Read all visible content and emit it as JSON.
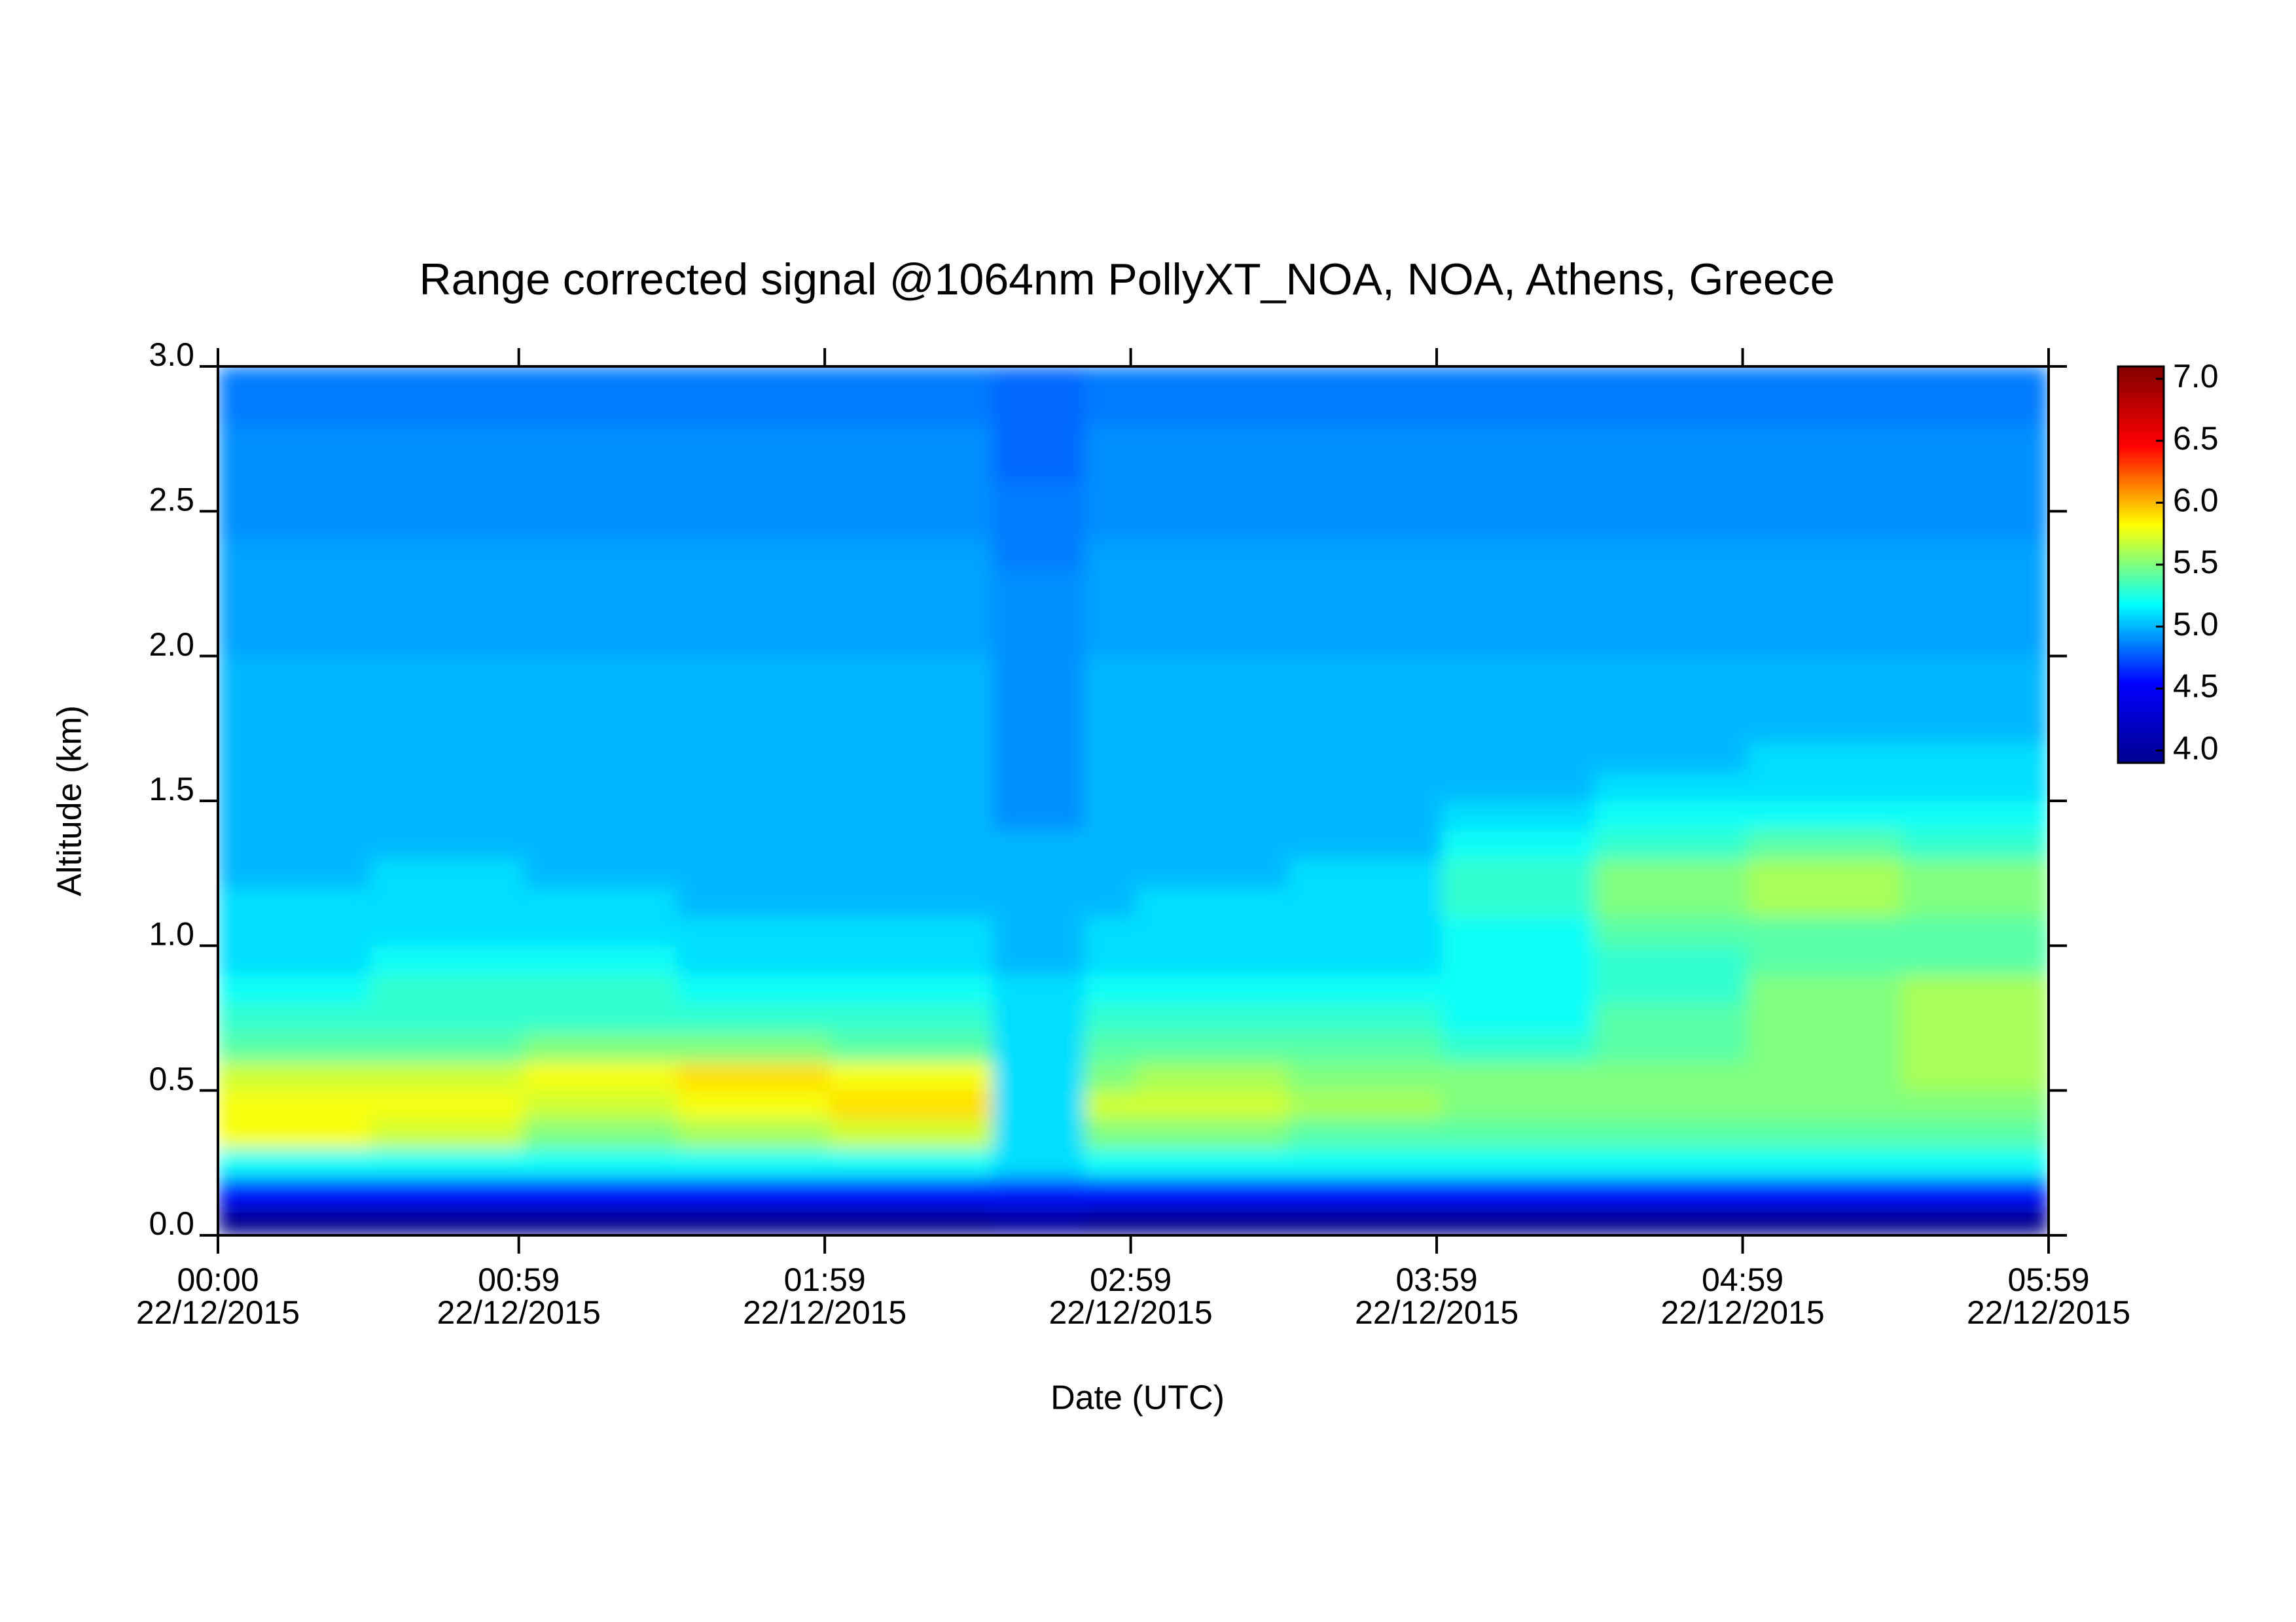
{
  "chart_data": {
    "type": "heatmap",
    "title": "Range corrected signal @1064nm  PollyXT_NOA, NOA, Athens, Greece",
    "x_label": "Date (UTC)",
    "y_label": "Altitude (km)",
    "xbins": [
      0,
      30,
      60,
      90,
      120,
      152,
      170,
      180,
      210,
      240,
      270,
      300,
      330,
      359
    ],
    "ybins": [
      0,
      0.1,
      0.2,
      0.3,
      0.4,
      0.5,
      0.6,
      0.7,
      0.8,
      0.9,
      1.0,
      1.1,
      1.2,
      1.3,
      1.4,
      1.5,
      1.6,
      1.7,
      1.8,
      1.9,
      2.0,
      2.1,
      2.2,
      2.3,
      2.4,
      2.5,
      2.6,
      2.7,
      2.8,
      2.9,
      3.0
    ],
    "z": [
      [
        3.9,
        3.9,
        3.9,
        3.9,
        3.9,
        4.0,
        3.9,
        3.9,
        3.9,
        3.9,
        3.9,
        3.9,
        3.9
      ],
      [
        4.6,
        4.6,
        4.6,
        4.6,
        4.6,
        4.6,
        4.6,
        4.6,
        4.6,
        4.6,
        4.6,
        4.6,
        4.6
      ],
      [
        5.2,
        5.2,
        5.2,
        5.2,
        5.2,
        5.1,
        5.2,
        5.2,
        5.2,
        5.2,
        5.2,
        5.2,
        5.2
      ],
      [
        5.8,
        5.7,
        5.5,
        5.6,
        5.7,
        5.1,
        5.5,
        5.5,
        5.4,
        5.4,
        5.4,
        5.4,
        5.4
      ],
      [
        5.8,
        5.8,
        5.7,
        5.8,
        5.9,
        5.1,
        5.7,
        5.7,
        5.6,
        5.5,
        5.5,
        5.5,
        5.5
      ],
      [
        5.7,
        5.7,
        5.8,
        5.9,
        5.8,
        5.1,
        5.5,
        5.6,
        5.5,
        5.5,
        5.5,
        5.5,
        5.6
      ],
      [
        5.4,
        5.4,
        5.5,
        5.5,
        5.4,
        5.1,
        5.4,
        5.4,
        5.4,
        5.3,
        5.4,
        5.5,
        5.6
      ],
      [
        5.3,
        5.3,
        5.3,
        5.3,
        5.3,
        5.1,
        5.3,
        5.3,
        5.3,
        5.2,
        5.4,
        5.5,
        5.6
      ],
      [
        5.2,
        5.3,
        5.3,
        5.2,
        5.2,
        5.1,
        5.2,
        5.2,
        5.2,
        5.2,
        5.3,
        5.5,
        5.6
      ],
      [
        5.1,
        5.2,
        5.2,
        5.1,
        5.1,
        5.0,
        5.1,
        5.1,
        5.1,
        5.2,
        5.3,
        5.4,
        5.4
      ],
      [
        5.1,
        5.1,
        5.1,
        5.1,
        5.1,
        5.0,
        5.1,
        5.1,
        5.1,
        5.2,
        5.4,
        5.4,
        5.4
      ],
      [
        5.1,
        5.1,
        5.1,
        5.0,
        5.0,
        5.0,
        5.0,
        5.1,
        5.1,
        5.3,
        5.5,
        5.6,
        5.5
      ],
      [
        5.0,
        5.1,
        5.0,
        5.0,
        5.0,
        5.0,
        5.0,
        5.0,
        5.1,
        5.3,
        5.5,
        5.6,
        5.5
      ],
      [
        5.0,
        5.0,
        5.0,
        5.0,
        5.0,
        5.0,
        5.0,
        5.0,
        5.0,
        5.2,
        5.3,
        5.4,
        5.3
      ],
      [
        5.0,
        5.0,
        5.0,
        5.0,
        5.0,
        4.9,
        5.0,
        5.0,
        5.0,
        5.1,
        5.2,
        5.2,
        5.2
      ],
      [
        5.0,
        5.0,
        5.0,
        5.0,
        5.0,
        4.9,
        5.0,
        5.0,
        5.0,
        5.0,
        5.1,
        5.1,
        5.1
      ],
      [
        5.0,
        5.0,
        5.0,
        5.0,
        5.0,
        4.9,
        5.0,
        5.0,
        5.0,
        5.0,
        5.0,
        5.1,
        5.1
      ],
      [
        5.0,
        5.0,
        5.0,
        5.0,
        5.0,
        4.9,
        5.0,
        5.0,
        5.0,
        5.0,
        5.0,
        5.0,
        5.0
      ],
      [
        5.0,
        5.0,
        5.0,
        5.0,
        5.0,
        4.9,
        5.0,
        5.0,
        5.0,
        5.0,
        5.0,
        5.0,
        5.0
      ],
      [
        5.0,
        5.0,
        5.0,
        5.0,
        5.0,
        4.9,
        5.0,
        5.0,
        5.0,
        5.0,
        5.0,
        5.0,
        5.0
      ],
      [
        4.95,
        4.95,
        4.95,
        4.95,
        4.95,
        4.9,
        4.95,
        4.95,
        4.95,
        4.95,
        4.95,
        4.95,
        4.95
      ],
      [
        4.95,
        4.95,
        4.95,
        4.95,
        4.95,
        4.9,
        4.95,
        4.95,
        4.95,
        4.95,
        4.95,
        4.95,
        4.95
      ],
      [
        4.95,
        4.95,
        4.95,
        4.95,
        4.95,
        4.9,
        4.95,
        4.95,
        4.95,
        4.95,
        4.95,
        4.95,
        4.95
      ],
      [
        4.95,
        4.95,
        4.95,
        4.95,
        4.95,
        4.85,
        4.95,
        4.95,
        4.95,
        4.95,
        4.95,
        4.95,
        4.95
      ],
      [
        4.9,
        4.9,
        4.9,
        4.9,
        4.9,
        4.85,
        4.9,
        4.9,
        4.9,
        4.9,
        4.9,
        4.9,
        4.9
      ],
      [
        4.9,
        4.9,
        4.9,
        4.9,
        4.9,
        4.85,
        4.9,
        4.9,
        4.9,
        4.9,
        4.9,
        4.9,
        4.9
      ],
      [
        4.9,
        4.9,
        4.9,
        4.9,
        4.9,
        4.8,
        4.9,
        4.9,
        4.9,
        4.9,
        4.9,
        4.9,
        4.9
      ],
      [
        4.9,
        4.9,
        4.9,
        4.9,
        4.9,
        4.8,
        4.9,
        4.9,
        4.9,
        4.9,
        4.9,
        4.9,
        4.9
      ],
      [
        4.85,
        4.85,
        4.85,
        4.85,
        4.85,
        4.8,
        4.85,
        4.85,
        4.85,
        4.85,
        4.85,
        4.85,
        4.85
      ],
      [
        4.85,
        4.85,
        4.85,
        4.85,
        4.85,
        4.8,
        4.85,
        4.85,
        4.85,
        4.85,
        4.85,
        4.85,
        4.85
      ]
    ],
    "xlim": [
      0,
      359
    ],
    "ylim": [
      0,
      3.0
    ],
    "xticks": [
      {
        "value": 0,
        "label": "00:00 22/12/2015"
      },
      {
        "value": 59,
        "label": "00:59 22/12/2015"
      },
      {
        "value": 119,
        "label": "01:59 22/12/2015"
      },
      {
        "value": 179,
        "label": "02:59 22/12/2015"
      },
      {
        "value": 239,
        "label": "03:59 22/12/2015"
      },
      {
        "value": 299,
        "label": "04:59 22/12/2015"
      },
      {
        "value": 359,
        "label": "05:59 22/12/2015"
      }
    ],
    "yticks": [
      {
        "value": 0,
        "label": "0.0"
      },
      0.5,
      {
        "value": 1,
        "label": "1.0"
      },
      1.5,
      {
        "value": 2,
        "label": "2.0"
      },
      2.5,
      {
        "value": 3,
        "label": "3.0"
      }
    ],
    "zlim": [
      3.9,
      7.1
    ],
    "zticks": [
      {
        "value": 4,
        "label": "4.0"
      },
      4.5,
      {
        "value": 5,
        "label": "5.0"
      },
      5.5,
      {
        "value": 6,
        "label": "6.0"
      },
      6.5,
      {
        "value": 7,
        "label": "7.0"
      }
    ],
    "colormap": [
      "#00008f",
      "#0000ff",
      "#00ffff",
      "#ffff00",
      "#ff0000",
      "#800000"
    ]
  }
}
